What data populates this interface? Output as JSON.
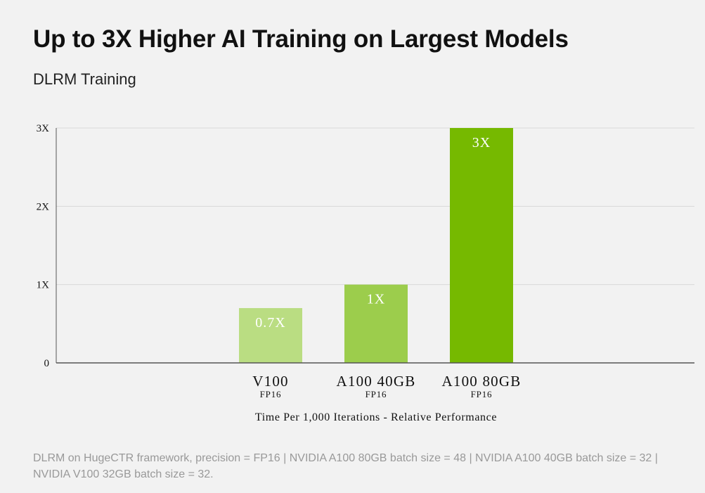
{
  "chart_data": {
    "type": "bar",
    "title": "Up to 3X Higher AI Training on Largest Models",
    "subtitle": "DLRM Training",
    "categories": [
      {
        "name": "V100",
        "sub": "FP16"
      },
      {
        "name": "A100 40GB",
        "sub": "FP16"
      },
      {
        "name": "A100 80GB",
        "sub": "FP16"
      }
    ],
    "values": [
      0.7,
      1,
      3
    ],
    "value_labels": [
      "0.7X",
      "1X",
      "3X"
    ],
    "colors": [
      "#badd82",
      "#9ccd4c",
      "#76b900"
    ],
    "yticks": [
      {
        "value": 0,
        "label": "0"
      },
      {
        "value": 1,
        "label": "1X"
      },
      {
        "value": 2,
        "label": "2X"
      },
      {
        "value": 3,
        "label": "3X"
      }
    ],
    "ylim": [
      0,
      3
    ],
    "xlabel": "Time Per 1,000 Iterations - Relative Performance",
    "ylabel": "",
    "grid": true,
    "legend": "none"
  },
  "footnote": "DLRM on HugeCTR framework, precision = FP16 | NVIDIA A100 80GB batch size = 48 | NVIDIA A100 40GB batch size = 32 | NVIDIA V100 32GB batch size = 32."
}
